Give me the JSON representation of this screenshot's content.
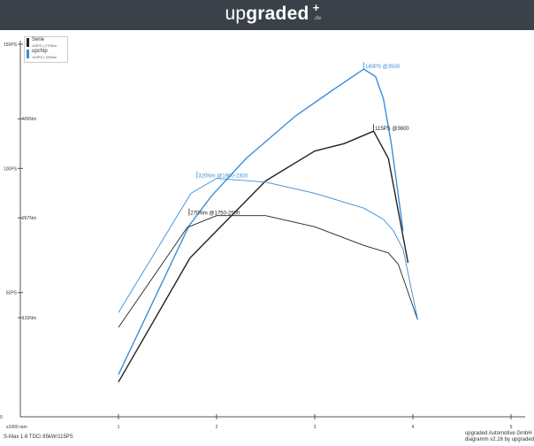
{
  "header": {
    "brand_light": "up",
    "brand_bold": "graded",
    "brand_tld": ".de",
    "star": "+"
  },
  "legend": [
    {
      "name": "Serie",
      "sub": "115PS | 270Nm",
      "color": "#222222"
    },
    {
      "name": "upchip",
      "sub": "140PS | 320Nm",
      "color": "#3a8fd9"
    }
  ],
  "footer": {
    "vehicle": "S-Max 1.6 TDCi  85kW/115PS",
    "company": "upgraded Automotive GmbH",
    "version": "diagramm v2.16 by upgraded"
  },
  "chart_data": {
    "type": "line",
    "x_unit_label": "x1000 rpm",
    "x_ticks": [
      1,
      2,
      3,
      4,
      5
    ],
    "x_range": [
      0,
      5
    ],
    "power_axis": {
      "range": [
        0,
        150
      ],
      "ticks": [
        {
          "v": 50,
          "label": "50PS"
        },
        {
          "v": 100,
          "label": "100PS"
        },
        {
          "v": 150,
          "label": "150PS"
        }
      ]
    },
    "torque_axis": {
      "range": [
        0,
        500
      ],
      "ticks": [
        {
          "v": 133,
          "label": "133Nm"
        },
        {
          "v": 267,
          "label": "267Nm"
        },
        {
          "v": 400,
          "label": "400Nm"
        }
      ]
    },
    "grid": false,
    "series": [
      {
        "name": "Serie",
        "kind": "power",
        "color": "#222222",
        "x": [
          1.0,
          1.73,
          2.5,
          3.0,
          3.3,
          3.6,
          3.75,
          3.95
        ],
        "y": [
          14,
          64,
          95,
          107,
          110,
          115,
          104,
          62
        ]
      },
      {
        "name": "upchip",
        "kind": "power",
        "color": "#3a8fd9",
        "x": [
          1.0,
          1.72,
          1.95,
          2.3,
          2.8,
          3.2,
          3.5,
          3.62,
          3.7,
          3.78,
          3.9
        ],
        "y": [
          17,
          77,
          89,
          104,
          121,
          132,
          140,
          137,
          128,
          110,
          75
        ]
      },
      {
        "name": "Serie",
        "kind": "torque",
        "color": "#222222",
        "x": [
          1.0,
          1.7,
          2.0,
          2.5,
          3.0,
          3.5,
          3.75,
          3.85,
          4.05
        ],
        "y": [
          120,
          254,
          270,
          270,
          255,
          230,
          220,
          205,
          130
        ]
      },
      {
        "name": "upchip",
        "kind": "torque",
        "color": "#3a8fd9",
        "x": [
          1.0,
          1.74,
          2.0,
          2.5,
          3.0,
          3.5,
          3.7,
          3.8,
          3.9,
          4.05
        ],
        "y": [
          140,
          300,
          320,
          315,
          300,
          280,
          265,
          250,
          225,
          130
        ]
      }
    ],
    "annotations": [
      {
        "text": "140PS @3500",
        "x": 3.5,
        "value": 140,
        "axis": "power",
        "color": "#3a8fd9"
      },
      {
        "text": "115PS @3600",
        "x": 3.6,
        "value": 115,
        "axis": "power",
        "color": "#222222"
      },
      {
        "text": "320Nm @1900-2300",
        "x": 1.8,
        "value": 320,
        "axis": "torque",
        "color": "#3a8fd9"
      },
      {
        "text": "270Nm @1750-2500",
        "x": 1.72,
        "value": 270,
        "axis": "torque",
        "color": "#222222"
      }
    ]
  }
}
